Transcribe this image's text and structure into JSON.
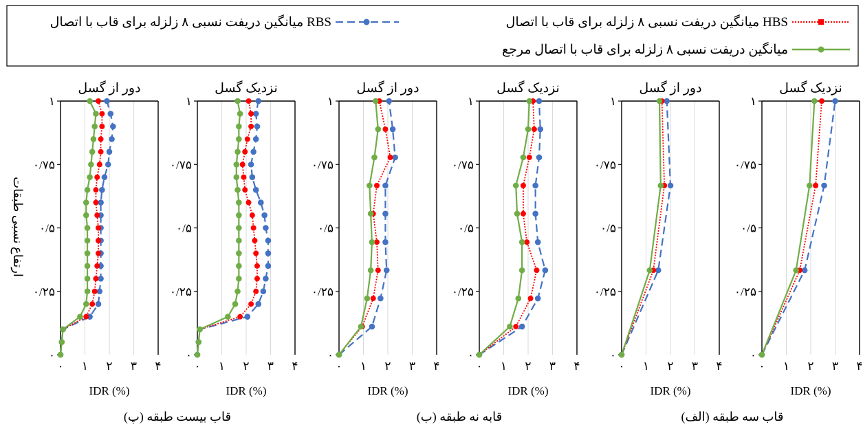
{
  "legend": {
    "hbs": "میانگین دریفت نسبی ۸ زلزله برای قاب با اتصال HBS",
    "rbs": "میانگین دریفت نسبی ۸ زلزله برای قاب با اتصال RBS",
    "ref": "میانگین دریفت نسبی ۸ زلزله برای قاب با اتصال مرجع"
  },
  "y_axis_label": "ارتفاع نسبی طبقات",
  "group_labels": {
    "three": "(الف) قاب سه طبقه",
    "nine": "(ب) قابه نه طبقه",
    "twenty": "(پ) قاب بیست طبقه"
  },
  "chart_data": [
    {
      "type": "line",
      "title": "نزدیک گسل",
      "xlabel": "IDR (%)",
      "xlim": [
        0,
        4
      ],
      "ylim": [
        0,
        1
      ],
      "x_ticks": [
        "۰",
        "۱",
        "۲",
        "۳",
        "۴"
      ],
      "y_ticks": [
        "۰",
        "۰/۲۵",
        "۰/۵",
        "۰/۷۵",
        "۱"
      ],
      "colors": {
        "rbs": "#4472C4",
        "hbs": "#FF0000",
        "ref": "#70AD47"
      },
      "series": [
        {
          "key": "rbs",
          "name": "RBS",
          "y": [
            0,
            0.333,
            0.667,
            1
          ],
          "x": [
            0,
            1.75,
            2.55,
            3.0
          ]
        },
        {
          "key": "hbs",
          "name": "HBS",
          "y": [
            0,
            0.333,
            0.667,
            1
          ],
          "x": [
            0,
            1.55,
            2.2,
            2.45
          ]
        },
        {
          "key": "ref",
          "name": "مرجع",
          "y": [
            0,
            0.333,
            0.667,
            1
          ],
          "x": [
            0,
            1.4,
            1.95,
            2.15
          ]
        }
      ]
    },
    {
      "type": "line",
      "title": "دور از گسل",
      "xlabel": "IDR (%)",
      "xlim": [
        0,
        4
      ],
      "ylim": [
        0,
        1
      ],
      "x_ticks": [
        "۰",
        "۱",
        "۲",
        "۳",
        "۴"
      ],
      "y_ticks": [
        "۰",
        "۰/۲۵",
        "۰/۵",
        "۰/۷۵",
        "۱"
      ],
      "colors": {
        "rbs": "#4472C4",
        "hbs": "#FF0000",
        "ref": "#70AD47"
      },
      "series": [
        {
          "key": "rbs",
          "name": "RBS",
          "y": [
            0,
            0.333,
            0.667,
            1
          ],
          "x": [
            0,
            1.5,
            2.0,
            1.85
          ]
        },
        {
          "key": "hbs",
          "name": "HBS",
          "y": [
            0,
            0.333,
            0.667,
            1
          ],
          "x": [
            0,
            1.3,
            1.75,
            1.65
          ]
        },
        {
          "key": "ref",
          "name": "مرجع",
          "y": [
            0,
            0.333,
            0.667,
            1
          ],
          "x": [
            0,
            1.15,
            1.6,
            1.55
          ]
        }
      ]
    },
    {
      "type": "line",
      "title": "نزدیک گسل",
      "xlabel": "IDR (%)",
      "xlim": [
        0,
        4
      ],
      "ylim": [
        0,
        1
      ],
      "x_ticks": [
        "۰",
        "۱",
        "۲",
        "۳",
        "۴"
      ],
      "y_ticks": [
        "۰",
        "۰/۲۵",
        "۰/۵",
        "۰/۷۵",
        "۱"
      ],
      "colors": {
        "rbs": "#4472C4",
        "hbs": "#FF0000",
        "ref": "#70AD47"
      },
      "series": [
        {
          "key": "rbs",
          "name": "RBS",
          "y": [
            0,
            0.111,
            0.222,
            0.333,
            0.444,
            0.556,
            0.667,
            0.778,
            0.889,
            1
          ],
          "x": [
            0,
            1.75,
            2.4,
            2.7,
            2.4,
            2.3,
            2.3,
            2.45,
            2.5,
            2.45
          ]
        },
        {
          "key": "hbs",
          "name": "HBS",
          "y": [
            0,
            0.111,
            0.222,
            0.333,
            0.444,
            0.556,
            0.667,
            0.778,
            0.889,
            1
          ],
          "x": [
            0,
            1.5,
            2.1,
            2.35,
            1.95,
            1.8,
            1.8,
            2.05,
            2.25,
            2.2
          ]
        },
        {
          "key": "ref",
          "name": "مرجع",
          "y": [
            0,
            0.111,
            0.222,
            0.333,
            0.444,
            0.556,
            0.667,
            0.778,
            0.889,
            1
          ],
          "x": [
            0,
            1.25,
            1.6,
            1.75,
            1.75,
            1.55,
            1.5,
            1.8,
            2.0,
            2.05
          ]
        }
      ]
    },
    {
      "type": "line",
      "title": "دور از گسل",
      "xlabel": "IDR (%)",
      "xlim": [
        0,
        4
      ],
      "ylim": [
        0,
        1
      ],
      "x_ticks": [
        "۰",
        "۱",
        "۲",
        "۳",
        "۴"
      ],
      "y_ticks": [
        "۰",
        "۰/۲۵",
        "۰/۵",
        "۰/۷۵",
        "۱"
      ],
      "colors": {
        "rbs": "#4472C4",
        "hbs": "#FF0000",
        "ref": "#70AD47"
      },
      "series": [
        {
          "key": "rbs",
          "name": "RBS",
          "y": [
            0,
            0.111,
            0.222,
            0.333,
            0.444,
            0.556,
            0.667,
            0.778,
            0.889,
            1
          ],
          "x": [
            0,
            1.35,
            1.7,
            1.95,
            1.9,
            1.9,
            1.9,
            2.3,
            2.2,
            2.05
          ]
        },
        {
          "key": "hbs",
          "name": "HBS",
          "y": [
            0,
            0.111,
            0.222,
            0.333,
            0.444,
            0.556,
            0.667,
            0.778,
            0.889,
            1
          ],
          "x": [
            0,
            0.95,
            1.4,
            1.6,
            1.55,
            1.4,
            1.55,
            2.1,
            1.9,
            1.65
          ]
        },
        {
          "key": "ref",
          "name": "مرجع",
          "y": [
            0,
            0.111,
            0.222,
            0.333,
            0.444,
            0.556,
            0.667,
            0.778,
            0.889,
            1
          ],
          "x": [
            0,
            0.9,
            1.15,
            1.3,
            1.35,
            1.3,
            1.25,
            1.45,
            1.6,
            1.5
          ]
        }
      ]
    },
    {
      "type": "line",
      "title": "نزدیک گسل",
      "xlabel": "IDR (%)",
      "xlim": [
        0,
        4
      ],
      "ylim": [
        0,
        1
      ],
      "x_ticks": [
        "۰",
        "۱",
        "۲",
        "۳",
        "۴"
      ],
      "y_ticks": [
        "۰",
        "۰/۲۵",
        "۰/۵",
        "۰/۷۵",
        "۱"
      ],
      "colors": {
        "rbs": "#4472C4",
        "hbs": "#FF0000",
        "ref": "#70AD47"
      },
      "series": [
        {
          "key": "rbs",
          "name": "RBS",
          "y": [
            0,
            0.05,
            0.1,
            0.15,
            0.2,
            0.25,
            0.3,
            0.35,
            0.4,
            0.45,
            0.5,
            0.55,
            0.6,
            0.65,
            0.7,
            0.75,
            0.8,
            0.85,
            0.9,
            0.95,
            1
          ],
          "x": [
            0,
            0.05,
            0.1,
            2.05,
            2.5,
            2.7,
            2.8,
            2.9,
            2.9,
            2.9,
            2.8,
            2.75,
            2.6,
            2.4,
            2.25,
            2.2,
            2.3,
            2.4,
            2.45,
            2.4,
            2.5
          ]
        },
        {
          "key": "hbs",
          "name": "HBS",
          "y": [
            0,
            0.05,
            0.1,
            0.15,
            0.2,
            0.25,
            0.3,
            0.35,
            0.4,
            0.45,
            0.5,
            0.55,
            0.6,
            0.65,
            0.7,
            0.75,
            0.8,
            0.85,
            0.9,
            0.95,
            1
          ],
          "x": [
            0,
            0.05,
            0.1,
            1.75,
            2.2,
            2.4,
            2.45,
            2.45,
            2.4,
            2.35,
            2.3,
            2.25,
            2.1,
            1.95,
            1.9,
            1.85,
            1.95,
            2.05,
            2.2,
            2.2,
            2.1
          ]
        },
        {
          "key": "ref",
          "name": "مرجع",
          "y": [
            0,
            0.05,
            0.1,
            0.15,
            0.2,
            0.25,
            0.3,
            0.35,
            0.4,
            0.45,
            0.5,
            0.55,
            0.6,
            0.65,
            0.7,
            0.75,
            0.8,
            0.85,
            0.9,
            0.95,
            1
          ],
          "x": [
            0,
            0.05,
            0.1,
            1.25,
            1.55,
            1.65,
            1.7,
            1.7,
            1.7,
            1.7,
            1.7,
            1.7,
            1.7,
            1.65,
            1.6,
            1.6,
            1.65,
            1.7,
            1.7,
            1.75,
            1.65
          ]
        }
      ]
    },
    {
      "type": "line",
      "title": "دور از گسل",
      "xlabel": "IDR (%)",
      "xlim": [
        0,
        4
      ],
      "ylim": [
        0,
        1
      ],
      "x_ticks": [
        "۰",
        "۱",
        "۲",
        "۳",
        "۴"
      ],
      "y_ticks": [
        "۰",
        "۰/۲۵",
        "۰/۵",
        "۰/۷۵",
        "۱"
      ],
      "colors": {
        "rbs": "#4472C4",
        "hbs": "#FF0000",
        "ref": "#70AD47"
      },
      "series": [
        {
          "key": "rbs",
          "name": "RBS",
          "y": [
            0,
            0.05,
            0.1,
            0.15,
            0.2,
            0.25,
            0.3,
            0.35,
            0.4,
            0.45,
            0.5,
            0.55,
            0.6,
            0.65,
            0.7,
            0.75,
            0.8,
            0.85,
            0.9,
            0.95,
            1
          ],
          "x": [
            0,
            0.05,
            0.1,
            1.2,
            1.55,
            1.6,
            1.65,
            1.65,
            1.65,
            1.65,
            1.65,
            1.65,
            1.65,
            1.7,
            1.8,
            1.95,
            2.0,
            2.1,
            2.15,
            2.05,
            1.9
          ]
        },
        {
          "key": "hbs",
          "name": "HBS",
          "y": [
            0,
            0.05,
            0.1,
            0.15,
            0.2,
            0.25,
            0.3,
            0.35,
            0.4,
            0.45,
            0.5,
            0.55,
            0.6,
            0.65,
            0.7,
            0.75,
            0.8,
            0.85,
            0.9,
            0.95,
            1
          ],
          "x": [
            0,
            0.05,
            0.1,
            1.05,
            1.3,
            1.4,
            1.45,
            1.5,
            1.55,
            1.55,
            1.55,
            1.5,
            1.45,
            1.45,
            1.5,
            1.6,
            1.65,
            1.65,
            1.7,
            1.7,
            1.55
          ]
        },
        {
          "key": "ref",
          "name": "مرجع",
          "y": [
            0,
            0.05,
            0.1,
            0.15,
            0.2,
            0.25,
            0.3,
            0.35,
            0.4,
            0.45,
            0.5,
            0.55,
            0.6,
            0.65,
            0.7,
            0.75,
            0.8,
            0.85,
            0.9,
            0.95,
            1
          ],
          "x": [
            0,
            0.05,
            0.1,
            0.8,
            1.05,
            1.1,
            1.1,
            1.1,
            1.1,
            1.1,
            1.1,
            1.05,
            1.05,
            1.1,
            1.2,
            1.25,
            1.3,
            1.35,
            1.4,
            1.45,
            1.2
          ]
        }
      ]
    }
  ]
}
